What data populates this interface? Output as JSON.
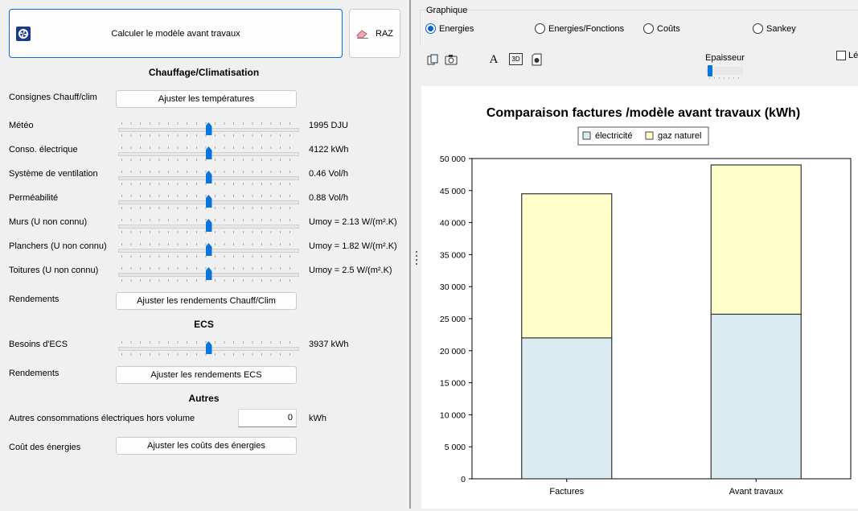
{
  "left": {
    "calc_button": "Calculer le modèle avant travaux",
    "raz_button": "RAZ",
    "section_heating": "Chauffage/Climatisation",
    "consignes_label": "Consignes Chauff/clim",
    "consignes_button": "Ajuster les températures",
    "sliders": [
      {
        "label": "Météo",
        "value": "1995 DJU",
        "level": 0.5
      },
      {
        "label": "Conso. électrique",
        "value": "4122 kWh",
        "level": 0.5
      },
      {
        "label": "Système de ventilation",
        "value": "0.46 Vol/h",
        "level": 0.5
      },
      {
        "label": "Perméabilité",
        "value": "0.88 Vol/h",
        "level": 0.5
      },
      {
        "label": "Murs (U non connu)",
        "value": "Umoy = 2.13 W/(m².K)",
        "level": 0.5
      },
      {
        "label": "Planchers (U non connu)",
        "value": "Umoy = 1.82 W/(m².K)",
        "level": 0.5
      },
      {
        "label": "Toitures (U non connu)",
        "value": "Umoy = 2.5 W/(m².K)",
        "level": 0.5
      }
    ],
    "rendements_label": "Rendements",
    "rendements_button": "Ajuster les rendements Chauff/Clim",
    "section_ecs": "ECS",
    "ecs_slider": {
      "label": "Besoins d'ECS",
      "value": "3937 kWh",
      "level": 0.5
    },
    "rendements_ecs_label": "Rendements",
    "rendements_ecs_button": "Ajuster les rendements ECS",
    "section_autres": "Autres",
    "autres_label": "Autres consommations électriques hors volume",
    "autres_value": "0",
    "autres_unit": "kWh",
    "cout_label": "Coût des énergies",
    "cout_button": "Ajuster les coûts des énergies"
  },
  "right": {
    "group_title": "Graphique",
    "radios": [
      {
        "label": "Energies",
        "selected": true
      },
      {
        "label": "Energies/Fonctions",
        "selected": false
      },
      {
        "label": "Coûts",
        "selected": false
      },
      {
        "label": "Sankey",
        "selected": false
      }
    ],
    "toolbar_icons": [
      "copy-icon",
      "camera-icon",
      "font-icon",
      "3d-icon",
      "export-icon"
    ],
    "font_icon_glyph": "A",
    "icon_3d_glyph": "3D",
    "epaisseur_label": "Epaisseur",
    "epaisseur_level": 0.05,
    "legend_checkbox_label": "Lé",
    "legend_checked": false
  },
  "chart_data": {
    "type": "bar",
    "stacked": true,
    "title": "Comparaison factures /modèle avant travaux  (kWh)",
    "categories": [
      "Factures",
      "Avant travaux"
    ],
    "series": [
      {
        "name": "électricité",
        "values": [
          22000,
          25700
        ],
        "color": "#daecf2"
      },
      {
        "name": "gaz naturel",
        "values": [
          22500,
          23300
        ],
        "color": "#ffffcc"
      }
    ],
    "ylim": [
      0,
      50000
    ],
    "yticks": [
      "0",
      "5 000",
      "10 000",
      "15 000",
      "20 000",
      "25 000",
      "30 000",
      "35 000",
      "40 000",
      "45 000",
      "50 000"
    ],
    "legend_position": "top-center",
    "grid": false
  }
}
